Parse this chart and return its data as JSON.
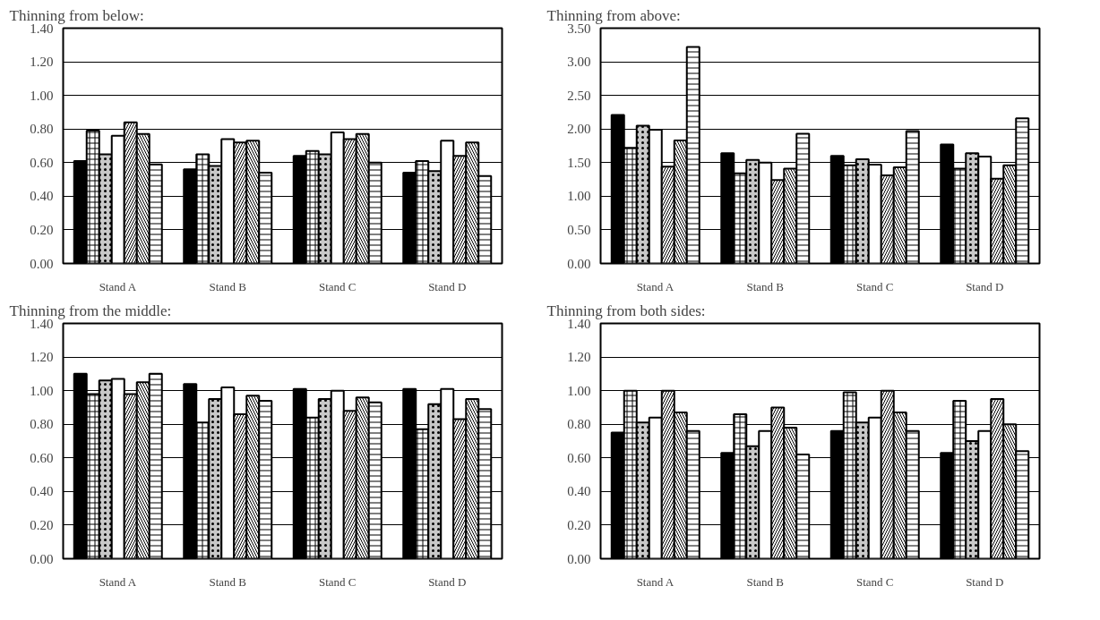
{
  "chart_data": [
    {
      "type": "bar",
      "title": "Thinning from below:",
      "categories": [
        "Stand A",
        "Stand B",
        "Stand C",
        "Stand D"
      ],
      "ylim": [
        0,
        1.4
      ],
      "yticks": [
        {
          "value": 0,
          "label": "0.00"
        },
        {
          "value": 0.2,
          "label": "0.20"
        },
        {
          "value": 0.4,
          "label": "0.40"
        },
        {
          "value": 0.6,
          "label": "0.60"
        },
        {
          "value": 0.8,
          "label": "0.80"
        },
        {
          "value": 1.0,
          "label": "1.00"
        },
        {
          "value": 1.2,
          "label": "1.20"
        },
        {
          "value": 1.4,
          "label": "1.40"
        }
      ],
      "grid": "y",
      "series": [
        {
          "color": "#000000",
          "values": [
            0.61,
            0.56,
            0.64,
            0.54
          ]
        },
        {
          "color": "#ffffff",
          "values": [
            0.79,
            0.65,
            0.67,
            0.61
          ]
        },
        {
          "color": "#c8c8c8",
          "values": [
            0.65,
            0.58,
            0.65,
            0.55
          ]
        },
        {
          "color": "#ffffff",
          "values": [
            0.76,
            0.74,
            0.78,
            0.73
          ]
        },
        {
          "color": "#ffffff",
          "values": [
            0.84,
            0.72,
            0.74,
            0.64
          ]
        },
        {
          "color": "#ffffff",
          "values": [
            0.77,
            0.73,
            0.77,
            0.72
          ]
        },
        {
          "color": "#ffffff",
          "values": [
            0.59,
            0.54,
            0.6,
            0.52
          ]
        }
      ]
    },
    {
      "type": "bar",
      "title": "Thinning from above:",
      "categories": [
        "Stand A",
        "Stand B",
        "Stand C",
        "Stand D"
      ],
      "ylim": [
        0,
        3.5
      ],
      "yticks": [
        {
          "value": 0,
          "label": "0.00"
        },
        {
          "value": 0.5,
          "label": "0.50"
        },
        {
          "value": 1.0,
          "label": "1.00"
        },
        {
          "value": 1.5,
          "label": "1.50"
        },
        {
          "value": 2.0,
          "label": "2.00"
        },
        {
          "value": 2.5,
          "label": "2.50"
        },
        {
          "value": 3.0,
          "label": "3.00"
        },
        {
          "value": 3.5,
          "label": "3.50"
        }
      ],
      "grid": "y",
      "series": [
        {
          "color": "#000000",
          "values": [
            2.21,
            1.64,
            1.6,
            1.77
          ]
        },
        {
          "color": "#ffffff",
          "values": [
            1.72,
            1.34,
            1.46,
            1.41
          ]
        },
        {
          "color": "#c8c8c8",
          "values": [
            2.05,
            1.54,
            1.55,
            1.64
          ]
        },
        {
          "color": "#ffffff",
          "values": [
            1.99,
            1.5,
            1.47,
            1.59
          ]
        },
        {
          "color": "#ffffff",
          "values": [
            1.44,
            1.24,
            1.31,
            1.26
          ]
        },
        {
          "color": "#ffffff",
          "values": [
            1.83,
            1.41,
            1.43,
            1.46
          ]
        },
        {
          "color": "#ffffff",
          "values": [
            3.22,
            1.93,
            1.97,
            2.16
          ]
        }
      ]
    },
    {
      "type": "bar",
      "title": "Thinning from the middle:",
      "categories": [
        "Stand A",
        "Stand B",
        "Stand C",
        "Stand D"
      ],
      "ylim": [
        0,
        1.4
      ],
      "yticks": [
        {
          "value": 0,
          "label": "0.00"
        },
        {
          "value": 0.2,
          "label": "0.20"
        },
        {
          "value": 0.4,
          "label": "0.40"
        },
        {
          "value": 0.6,
          "label": "0.60"
        },
        {
          "value": 0.8,
          "label": "0.80"
        },
        {
          "value": 1.0,
          "label": "1.00"
        },
        {
          "value": 1.2,
          "label": "1.20"
        },
        {
          "value": 1.4,
          "label": "1.40"
        }
      ],
      "grid": "y",
      "series": [
        {
          "color": "#000000",
          "values": [
            1.1,
            1.04,
            1.01,
            1.01
          ]
        },
        {
          "color": "#ffffff",
          "values": [
            0.98,
            0.81,
            0.84,
            0.77
          ]
        },
        {
          "color": "#c8c8c8",
          "values": [
            1.06,
            0.95,
            0.95,
            0.92
          ]
        },
        {
          "color": "#ffffff",
          "values": [
            1.07,
            1.02,
            1.0,
            1.01
          ]
        },
        {
          "color": "#ffffff",
          "values": [
            0.98,
            0.86,
            0.88,
            0.83
          ]
        },
        {
          "color": "#ffffff",
          "values": [
            1.05,
            0.97,
            0.96,
            0.95
          ]
        },
        {
          "color": "#ffffff",
          "values": [
            1.1,
            0.94,
            0.93,
            0.89
          ]
        }
      ]
    },
    {
      "type": "bar",
      "title": "Thinning from both sides:",
      "categories": [
        "Stand A",
        "Stand B",
        "Stand C",
        "Stand D"
      ],
      "ylim": [
        0,
        1.4
      ],
      "yticks": [
        {
          "value": 0,
          "label": "0.00"
        },
        {
          "value": 0.2,
          "label": "0.20"
        },
        {
          "value": 0.4,
          "label": "0.40"
        },
        {
          "value": 0.6,
          "label": "0.60"
        },
        {
          "value": 0.8,
          "label": "0.80"
        },
        {
          "value": 1.0,
          "label": "1.00"
        },
        {
          "value": 1.2,
          "label": "1.20"
        },
        {
          "value": 1.4,
          "label": "1.40"
        }
      ],
      "grid": "y",
      "series": [
        {
          "color": "#000000",
          "values": [
            0.75,
            0.63,
            0.76,
            0.63
          ]
        },
        {
          "color": "#ffffff",
          "values": [
            1.0,
            0.86,
            0.99,
            0.94
          ]
        },
        {
          "color": "#c8c8c8",
          "values": [
            0.81,
            0.67,
            0.81,
            0.7
          ]
        },
        {
          "color": "#ffffff",
          "values": [
            0.84,
            0.76,
            0.84,
            0.76
          ]
        },
        {
          "color": "#ffffff",
          "values": [
            1.0,
            0.9,
            1.0,
            0.95
          ]
        },
        {
          "color": "#ffffff",
          "values": [
            0.87,
            0.78,
            0.87,
            0.8
          ]
        },
        {
          "color": "#ffffff",
          "values": [
            0.76,
            0.62,
            0.76,
            0.64
          ]
        }
      ]
    }
  ]
}
